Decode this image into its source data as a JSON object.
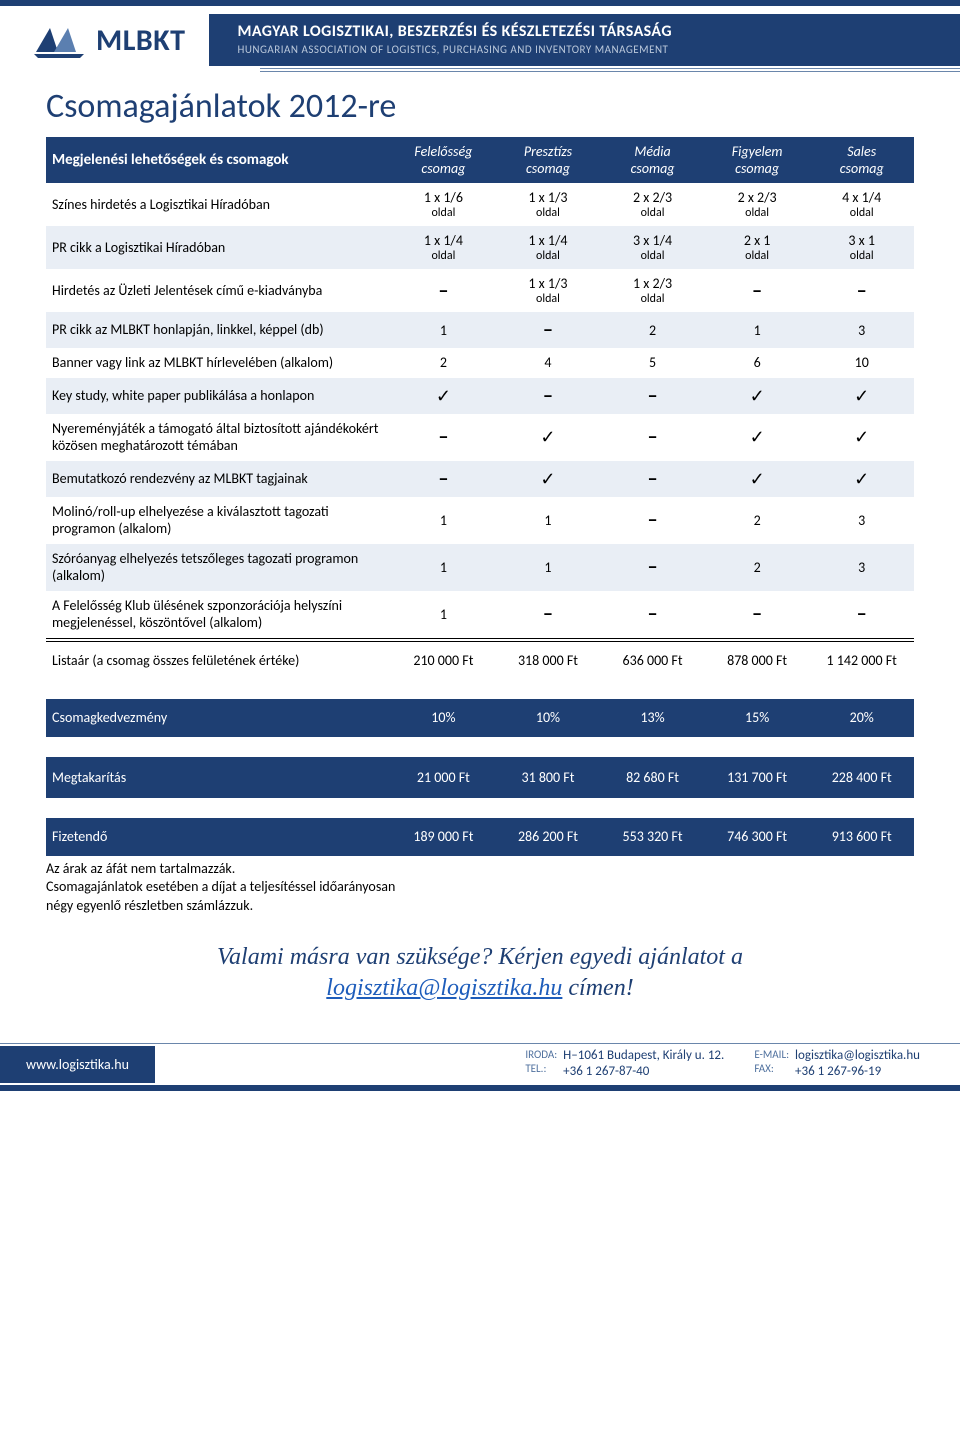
{
  "colors": {
    "brand_primary": "#1e3f73",
    "brand_text_light": "#b9c7da",
    "zebra_alt": "#e9eef5",
    "link": "#1e5dbb",
    "rule": "#6a86ab"
  },
  "header": {
    "logo_text": "MLBKT",
    "title_main": "MAGYAR LOGISZTIKAI, BESZERZÉSI ÉS KÉSZLETEZÉSI TÁRSASÁG",
    "title_sub": "HUNGARIAN ASSOCIATION OF LOGISTICS, PURCHASING AND INVENTORY MANAGEMENT"
  },
  "page": {
    "title": "Csomagajánlatok 2012-re"
  },
  "table": {
    "head": {
      "rowlabel": "Megjelenési lehetőségek és csomagok",
      "cols": [
        {
          "t1": "Felelősség",
          "t2": "csomag"
        },
        {
          "t1": "Presztízs",
          "t2": "csomag"
        },
        {
          "t1": "Média",
          "t2": "csomag"
        },
        {
          "t1": "Figyelem",
          "t2": "csomag"
        },
        {
          "t1": "Sales",
          "t2": "csomag"
        }
      ]
    },
    "rows": [
      {
        "label": "Színes hirdetés a Logisztikai Híradóban",
        "cells": [
          {
            "t": "1 x 1/6",
            "s": "oldal"
          },
          {
            "t": "1 x 1/3",
            "s": "oldal"
          },
          {
            "t": "2 x 2/3",
            "s": "oldal"
          },
          {
            "t": "2 x 2/3",
            "s": "oldal"
          },
          {
            "t": "4 x 1/4",
            "s": "oldal"
          }
        ]
      },
      {
        "label": "PR cikk a Logisztikai Híradóban",
        "cells": [
          {
            "t": "1 x 1/4",
            "s": "oldal"
          },
          {
            "t": "1 x 1/4",
            "s": "oldal"
          },
          {
            "t": "3 x 1/4",
            "s": "oldal"
          },
          {
            "t": "2 x 1",
            "s": "oldal"
          },
          {
            "t": "3 x 1",
            "s": "oldal"
          }
        ]
      },
      {
        "label": "Hirdetés az Üzleti Jelentések című e-kiadványba",
        "cells": [
          {
            "dash": true
          },
          {
            "t": "1 x 1/3",
            "s": "oldal"
          },
          {
            "t": "1 x 2/3",
            "s": "oldal"
          },
          {
            "dash": true
          },
          {
            "dash": true
          }
        ]
      },
      {
        "label": "PR cikk az MLBKT honlapján, linkkel, képpel (db)",
        "cells": [
          {
            "t": "1"
          },
          {
            "dash": true
          },
          {
            "t": "2"
          },
          {
            "t": "1"
          },
          {
            "t": "3"
          }
        ]
      },
      {
        "label": "Banner vagy link az MLBKT hírlevelében (alkalom)",
        "cells": [
          {
            "t": "2"
          },
          {
            "t": "4"
          },
          {
            "t": "5"
          },
          {
            "t": "6"
          },
          {
            "t": "10"
          }
        ]
      },
      {
        "label": "Key study, white paper publikálása a honlapon",
        "cells": [
          {
            "check": true
          },
          {
            "dash": true
          },
          {
            "dash": true
          },
          {
            "check": true
          },
          {
            "check": true
          }
        ]
      },
      {
        "label": "Nyereményjáték a támogató által biztosított ajándékokért közösen meghatározott témában",
        "cells": [
          {
            "dash": true
          },
          {
            "check": true
          },
          {
            "dash": true
          },
          {
            "check": true
          },
          {
            "check": true
          }
        ]
      },
      {
        "label": "Bemutatkozó rendezvény az MLBKT tagjainak",
        "cells": [
          {
            "dash": true
          },
          {
            "check": true
          },
          {
            "dash": true
          },
          {
            "check": true
          },
          {
            "check": true
          }
        ]
      },
      {
        "label": "Molinó/roll-up elhelyezése a kiválasztott tagozati programon (alkalom)",
        "cells": [
          {
            "t": "1"
          },
          {
            "t": "1"
          },
          {
            "dash": true
          },
          {
            "t": "2"
          },
          {
            "t": "3"
          }
        ]
      },
      {
        "label": "Szóróanyag elhelyezés tetszőleges tagozati programon (alkalom)",
        "cells": [
          {
            "t": "1"
          },
          {
            "t": "1"
          },
          {
            "dash": true
          },
          {
            "t": "2"
          },
          {
            "t": "3"
          }
        ]
      },
      {
        "label": "A Felelősség Klub ülésének szponzorációja helyszíni megjelenéssel, köszöntővel (alkalom)",
        "cells": [
          {
            "t": "1"
          },
          {
            "dash": true
          },
          {
            "dash": true
          },
          {
            "dash": true
          },
          {
            "dash": true
          }
        ]
      }
    ],
    "summary": {
      "listaar": {
        "label": "Listaár (a csomag összes felületének értéke)",
        "vals": [
          "210 000 Ft",
          "318 000 Ft",
          "636 000 Ft",
          "878 000 Ft",
          "1 142 000 Ft"
        ]
      },
      "kedvezmeny": {
        "label": "Csomagkedvezmény",
        "vals": [
          "10%",
          "10%",
          "13%",
          "15%",
          "20%"
        ]
      },
      "megtakaritas": {
        "label": "Megtakarítás",
        "vals": [
          "21 000 Ft",
          "31 800 Ft",
          "82 680 Ft",
          "131 700 Ft",
          "228 400 Ft"
        ]
      },
      "fizetendo": {
        "label": "Fizetendő",
        "vals": [
          "189 000 Ft",
          "286 200 Ft",
          "553 320 Ft",
          "746 300 Ft",
          "913 600 Ft"
        ]
      }
    }
  },
  "notes": {
    "l1": "Az árak az áfát nem tartalmazzák.",
    "l2": "Csomagajánlatok esetében a díjat a teljesítéssel időarányosan",
    "l3": "négy egyenlő részletben számlázzuk."
  },
  "cta": {
    "pre": "Valami másra van szüksége? Kérjen egyedi ajánlatot a ",
    "email": "logisztika@logisztika.hu",
    "post": " címen!"
  },
  "footer": {
    "site": "www.logisztika.hu",
    "iroda_label": "IRODA:",
    "iroda_val": "H–1061 Budapest, Király u. 12.",
    "tel_label": "TEL.:",
    "tel_val": "+36 1 267-87-40",
    "email_label": "E-MAIL:",
    "email_val": "logisztika@logisztika.hu",
    "fax_label": "FAX:",
    "fax_val": "+36 1 267-96-19"
  }
}
